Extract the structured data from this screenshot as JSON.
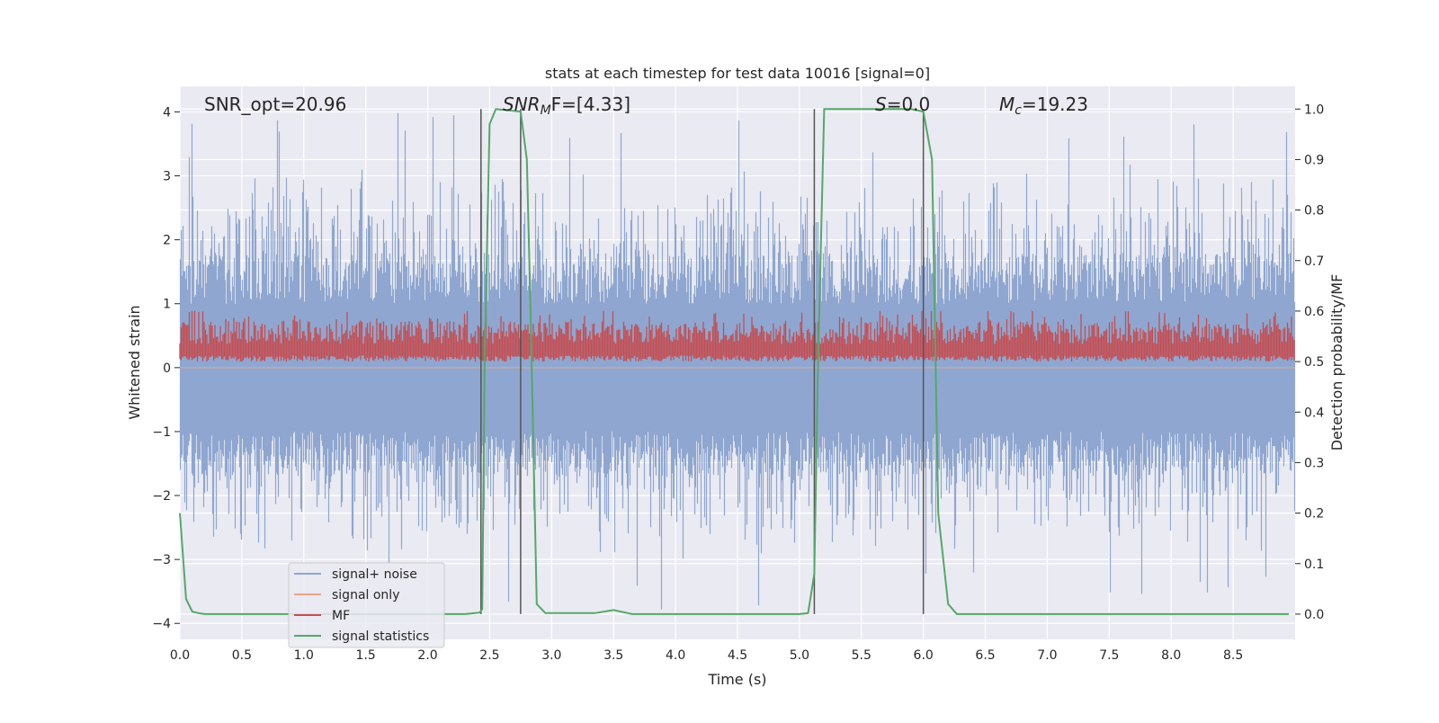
{
  "chart_data": {
    "type": "line",
    "title": "stats at each timestep for test data 10016 [signal=0]",
    "xlabel": "Time (s)",
    "ylabel_left": "Whitened strain",
    "ylabel_right": "Detection probability/MF",
    "xlim": [
      0.0,
      9.0
    ],
    "ylim_left": [
      -4.25,
      4.4
    ],
    "ylim_right": [
      -0.05,
      1.045
    ],
    "x_ticks": [
      0.0,
      0.5,
      1.0,
      1.5,
      2.0,
      2.5,
      3.0,
      3.5,
      4.0,
      4.5,
      5.0,
      5.5,
      6.0,
      6.5,
      7.0,
      7.5,
      8.0,
      8.5
    ],
    "x_tick_labels": [
      "0.0",
      "0.5",
      "1.0",
      "1.5",
      "2.0",
      "2.5",
      "3.0",
      "3.5",
      "4.0",
      "4.5",
      "5.0",
      "5.5",
      "6.0",
      "6.5",
      "7.0",
      "7.5",
      "8.0",
      "8.5"
    ],
    "y_left_ticks": [
      4,
      3,
      2,
      1,
      0,
      -1,
      -2,
      -3,
      -4
    ],
    "y_left_tick_labels": [
      "4",
      "3",
      "2",
      "1",
      "0",
      "−1",
      "−2",
      "−3",
      "−4"
    ],
    "y_right_ticks": [
      1.0,
      0.9,
      0.8,
      0.7,
      0.6,
      0.5,
      0.4,
      0.3,
      0.2,
      0.1,
      0.0
    ],
    "y_right_tick_labels": [
      "1.0",
      "0.9",
      "0.8",
      "0.7",
      "0.6",
      "0.5",
      "0.4",
      "0.3",
      "0.2",
      "0.1",
      "0.0"
    ],
    "grid": true,
    "background": "#eaeaf2",
    "legend_position": "lower-left",
    "annotations": {
      "snr_opt": "SNR_opt=20.96",
      "snr_mf_sym": "SNR",
      "snr_mf_sub": "M",
      "snr_mf_rest": "F=[4.33]",
      "s_sym": "S",
      "s_rest": "=0.0",
      "mc_sym": "M",
      "mc_sub": "c",
      "mc_rest": "=19.23"
    },
    "series": [
      {
        "name": "signal+ noise",
        "color": "#8fa7d0",
        "kind": "noise",
        "axis": "left",
        "amplitude_typical": 1.5,
        "amplitude_max": 4.0
      },
      {
        "name": "signal only",
        "color": "#e8a58a",
        "kind": "flat",
        "axis": "left",
        "values": []
      },
      {
        "name": "MF",
        "color": "#c44e52",
        "kind": "noise",
        "axis": "right",
        "baseline": 0.5,
        "amplitude_max": 0.6
      },
      {
        "name": "signal statistics",
        "color": "#55a868",
        "axis": "right",
        "x": [
          0.0,
          0.05,
          0.1,
          0.15,
          0.2,
          2.3,
          2.42,
          2.44,
          2.46,
          2.5,
          2.55,
          2.75,
          2.8,
          2.83,
          2.88,
          2.95,
          3.35,
          3.5,
          3.65,
          5.0,
          5.07,
          5.12,
          5.15,
          5.2,
          5.9,
          6.0,
          6.07,
          6.12,
          6.2,
          6.27,
          8.95
        ],
        "y": [
          0.2,
          0.03,
          0.005,
          0.002,
          0.0,
          0.0,
          0.003,
          0.01,
          0.5,
          0.97,
          1.0,
          0.995,
          0.9,
          0.6,
          0.02,
          0.002,
          0.002,
          0.008,
          0.0,
          0.0,
          0.002,
          0.08,
          0.5,
          1.0,
          1.0,
          0.995,
          0.9,
          0.2,
          0.02,
          0.0,
          0.0
        ]
      }
    ],
    "vertical_lines": [
      2.43,
      2.75,
      5.12,
      6.0
    ],
    "vertical_line_color": "#555555"
  }
}
